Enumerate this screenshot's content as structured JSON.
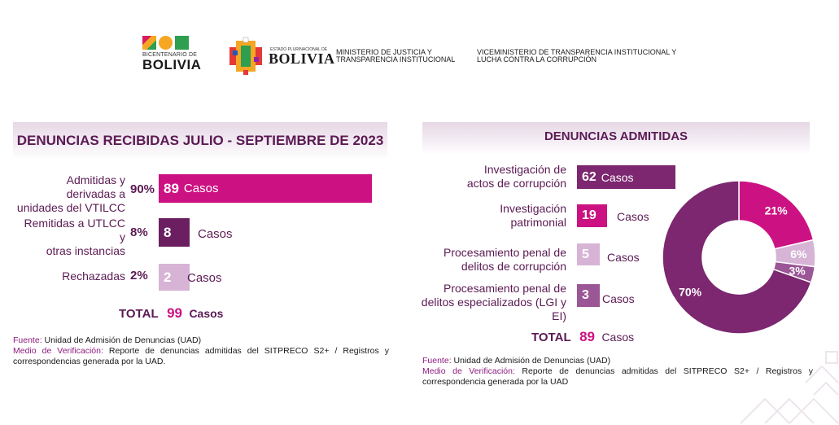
{
  "header": {
    "bicentenario_small": "BICENTENARIO DE",
    "bicentenario_big": "BOLIVIA",
    "estado_label": "ESTADO PLURINACIONAL DE",
    "bolivia_label": "BOLIVIA",
    "ministerio": "MINISTERIO DE JUSTICIA Y TRANSPARENCIA INSTITUCIONAL",
    "viceministerio": "VICEMINISTERIO DE TRANSPARENCIA INSTITUCIONAL Y LUCHA CONTRA LA CORRUPCIÓN"
  },
  "colors": {
    "magenta": "#cc1282",
    "purple": "#7c2770",
    "dark_purple": "#6b1f61",
    "light_purple": "#d7b4d6",
    "mid_purple": "#9b5696",
    "text_purple": "#5b1a54"
  },
  "left": {
    "title": "DENUNCIAS RECIBIDAS JULIO - SEPTIEMBRE DE 2023",
    "rows": [
      {
        "label_1": "Admitidas y derivadas a",
        "label_2": "unidades del VTILCC",
        "pct": "90%",
        "value": "89",
        "casos": "Casos"
      },
      {
        "label_1": "Remitidas a UTLCC y",
        "label_2": "otras instancias",
        "pct": "8%",
        "value": "8",
        "casos": "Casos"
      },
      {
        "label_1": "Rechazadas",
        "label_2": "",
        "pct": "2%",
        "value": "2",
        "casos": "Casos"
      }
    ],
    "total_label": "TOTAL",
    "total_value": "99",
    "total_casos": "Casos",
    "fuente_label": "Fuente:",
    "fuente_text": "Unidad de Admisión de Denuncias (UAD)",
    "medio_label": "Medio de Verificación:",
    "medio_text_1": "Reporte de denuncias admitidas del SITPRECO S2+ / Registros y",
    "medio_text_2": "correspondencias generada por la UAD."
  },
  "right": {
    "title": "DENUNCIAS ADMITIDAS",
    "rows": [
      {
        "label_1": "Investigación de",
        "label_2": "actos de corrupción",
        "value": "62",
        "casos": "Casos"
      },
      {
        "label_1": "Investigación",
        "label_2": "patrimonial",
        "value": "19",
        "casos": "Casos"
      },
      {
        "label_1": "Procesamiento penal de",
        "label_2": "delitos de corrupción",
        "value": "5",
        "casos": "Casos"
      },
      {
        "label_1": "Procesamiento penal de",
        "label_2": "delitos especializados (LGI y EI)",
        "value": "3",
        "casos": "Casos"
      }
    ],
    "total_label": "TOTAL",
    "total_value": "89",
    "total_casos": "Casos",
    "fuente_label": "Fuente:",
    "fuente_text": "Unidad de Admisión de Denuncias (UAD)",
    "medio_label": "Medio de Verificación:",
    "medio_text_1": "Reporte de denuncias admitidas del SITPRECO S2+ / Registros y",
    "medio_text_2": "correspondencia generada por la UAD"
  },
  "chart_data": [
    {
      "type": "bar",
      "title": "DENUNCIAS RECIBIDAS JULIO - SEPTIEMBRE DE 2023",
      "categories": [
        "Admitidas y derivadas a unidades del VTILCC",
        "Remitidas a UTLCC y otras instancias",
        "Rechazadas"
      ],
      "values": [
        89,
        8,
        2
      ],
      "percentages": [
        "90%",
        "8%",
        "2%"
      ],
      "colors": [
        "#cc1282",
        "#6b1f61",
        "#d7b4d6"
      ],
      "total": 99
    },
    {
      "type": "pie",
      "title": "DENUNCIAS ADMITIDAS",
      "categories": [
        "Investigación de actos de corrupción",
        "Investigación patrimonial",
        "Procesamiento penal de delitos de corrupción",
        "Procesamiento penal de delitos especializados (LGI y EI)"
      ],
      "values": [
        62,
        19,
        5,
        3
      ],
      "percent_labels": [
        "70%",
        "21%",
        "6%",
        "3%"
      ],
      "colors": [
        "#7c2770",
        "#cc1282",
        "#d7b4d6",
        "#9b5696"
      ],
      "total": 89
    }
  ]
}
